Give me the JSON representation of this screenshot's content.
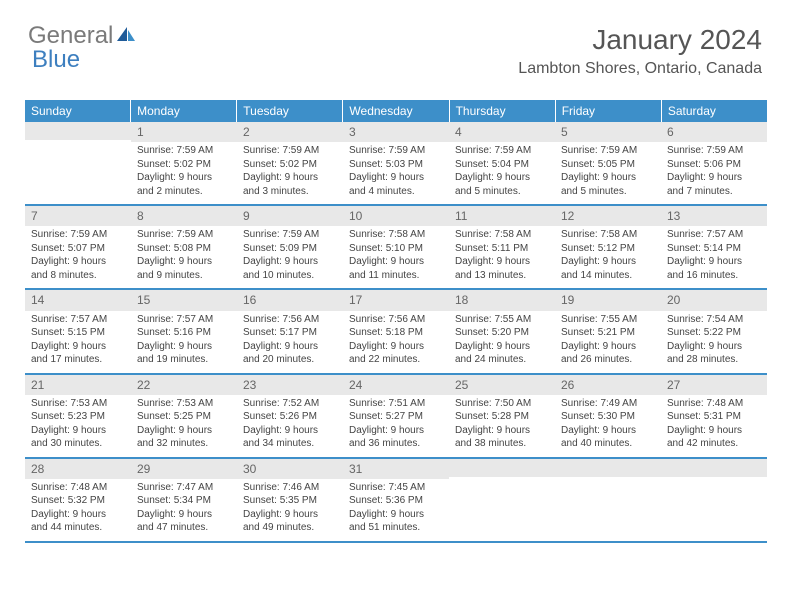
{
  "logo": {
    "part1": "General",
    "part2": "Blue"
  },
  "title": "January 2024",
  "location": "Lambton Shores, Ontario, Canada",
  "colors": {
    "header_bg": "#3d8fc9",
    "header_text": "#ffffff",
    "daynum_bg": "#e8e8e8",
    "body_text": "#444444",
    "row_border": "#3d8fc9"
  },
  "day_headers": [
    "Sunday",
    "Monday",
    "Tuesday",
    "Wednesday",
    "Thursday",
    "Friday",
    "Saturday"
  ],
  "weeks": [
    [
      {
        "n": "",
        "sr": "",
        "ss": "",
        "dl": ""
      },
      {
        "n": "1",
        "sr": "Sunrise: 7:59 AM",
        "ss": "Sunset: 5:02 PM",
        "dl": "Daylight: 9 hours and 2 minutes."
      },
      {
        "n": "2",
        "sr": "Sunrise: 7:59 AM",
        "ss": "Sunset: 5:02 PM",
        "dl": "Daylight: 9 hours and 3 minutes."
      },
      {
        "n": "3",
        "sr": "Sunrise: 7:59 AM",
        "ss": "Sunset: 5:03 PM",
        "dl": "Daylight: 9 hours and 4 minutes."
      },
      {
        "n": "4",
        "sr": "Sunrise: 7:59 AM",
        "ss": "Sunset: 5:04 PM",
        "dl": "Daylight: 9 hours and 5 minutes."
      },
      {
        "n": "5",
        "sr": "Sunrise: 7:59 AM",
        "ss": "Sunset: 5:05 PM",
        "dl": "Daylight: 9 hours and 5 minutes."
      },
      {
        "n": "6",
        "sr": "Sunrise: 7:59 AM",
        "ss": "Sunset: 5:06 PM",
        "dl": "Daylight: 9 hours and 7 minutes."
      }
    ],
    [
      {
        "n": "7",
        "sr": "Sunrise: 7:59 AM",
        "ss": "Sunset: 5:07 PM",
        "dl": "Daylight: 9 hours and 8 minutes."
      },
      {
        "n": "8",
        "sr": "Sunrise: 7:59 AM",
        "ss": "Sunset: 5:08 PM",
        "dl": "Daylight: 9 hours and 9 minutes."
      },
      {
        "n": "9",
        "sr": "Sunrise: 7:59 AM",
        "ss": "Sunset: 5:09 PM",
        "dl": "Daylight: 9 hours and 10 minutes."
      },
      {
        "n": "10",
        "sr": "Sunrise: 7:58 AM",
        "ss": "Sunset: 5:10 PM",
        "dl": "Daylight: 9 hours and 11 minutes."
      },
      {
        "n": "11",
        "sr": "Sunrise: 7:58 AM",
        "ss": "Sunset: 5:11 PM",
        "dl": "Daylight: 9 hours and 13 minutes."
      },
      {
        "n": "12",
        "sr": "Sunrise: 7:58 AM",
        "ss": "Sunset: 5:12 PM",
        "dl": "Daylight: 9 hours and 14 minutes."
      },
      {
        "n": "13",
        "sr": "Sunrise: 7:57 AM",
        "ss": "Sunset: 5:14 PM",
        "dl": "Daylight: 9 hours and 16 minutes."
      }
    ],
    [
      {
        "n": "14",
        "sr": "Sunrise: 7:57 AM",
        "ss": "Sunset: 5:15 PM",
        "dl": "Daylight: 9 hours and 17 minutes."
      },
      {
        "n": "15",
        "sr": "Sunrise: 7:57 AM",
        "ss": "Sunset: 5:16 PM",
        "dl": "Daylight: 9 hours and 19 minutes."
      },
      {
        "n": "16",
        "sr": "Sunrise: 7:56 AM",
        "ss": "Sunset: 5:17 PM",
        "dl": "Daylight: 9 hours and 20 minutes."
      },
      {
        "n": "17",
        "sr": "Sunrise: 7:56 AM",
        "ss": "Sunset: 5:18 PM",
        "dl": "Daylight: 9 hours and 22 minutes."
      },
      {
        "n": "18",
        "sr": "Sunrise: 7:55 AM",
        "ss": "Sunset: 5:20 PM",
        "dl": "Daylight: 9 hours and 24 minutes."
      },
      {
        "n": "19",
        "sr": "Sunrise: 7:55 AM",
        "ss": "Sunset: 5:21 PM",
        "dl": "Daylight: 9 hours and 26 minutes."
      },
      {
        "n": "20",
        "sr": "Sunrise: 7:54 AM",
        "ss": "Sunset: 5:22 PM",
        "dl": "Daylight: 9 hours and 28 minutes."
      }
    ],
    [
      {
        "n": "21",
        "sr": "Sunrise: 7:53 AM",
        "ss": "Sunset: 5:23 PM",
        "dl": "Daylight: 9 hours and 30 minutes."
      },
      {
        "n": "22",
        "sr": "Sunrise: 7:53 AM",
        "ss": "Sunset: 5:25 PM",
        "dl": "Daylight: 9 hours and 32 minutes."
      },
      {
        "n": "23",
        "sr": "Sunrise: 7:52 AM",
        "ss": "Sunset: 5:26 PM",
        "dl": "Daylight: 9 hours and 34 minutes."
      },
      {
        "n": "24",
        "sr": "Sunrise: 7:51 AM",
        "ss": "Sunset: 5:27 PM",
        "dl": "Daylight: 9 hours and 36 minutes."
      },
      {
        "n": "25",
        "sr": "Sunrise: 7:50 AM",
        "ss": "Sunset: 5:28 PM",
        "dl": "Daylight: 9 hours and 38 minutes."
      },
      {
        "n": "26",
        "sr": "Sunrise: 7:49 AM",
        "ss": "Sunset: 5:30 PM",
        "dl": "Daylight: 9 hours and 40 minutes."
      },
      {
        "n": "27",
        "sr": "Sunrise: 7:48 AM",
        "ss": "Sunset: 5:31 PM",
        "dl": "Daylight: 9 hours and 42 minutes."
      }
    ],
    [
      {
        "n": "28",
        "sr": "Sunrise: 7:48 AM",
        "ss": "Sunset: 5:32 PM",
        "dl": "Daylight: 9 hours and 44 minutes."
      },
      {
        "n": "29",
        "sr": "Sunrise: 7:47 AM",
        "ss": "Sunset: 5:34 PM",
        "dl": "Daylight: 9 hours and 47 minutes."
      },
      {
        "n": "30",
        "sr": "Sunrise: 7:46 AM",
        "ss": "Sunset: 5:35 PM",
        "dl": "Daylight: 9 hours and 49 minutes."
      },
      {
        "n": "31",
        "sr": "Sunrise: 7:45 AM",
        "ss": "Sunset: 5:36 PM",
        "dl": "Daylight: 9 hours and 51 minutes."
      },
      {
        "n": "",
        "sr": "",
        "ss": "",
        "dl": ""
      },
      {
        "n": "",
        "sr": "",
        "ss": "",
        "dl": ""
      },
      {
        "n": "",
        "sr": "",
        "ss": "",
        "dl": ""
      }
    ]
  ]
}
